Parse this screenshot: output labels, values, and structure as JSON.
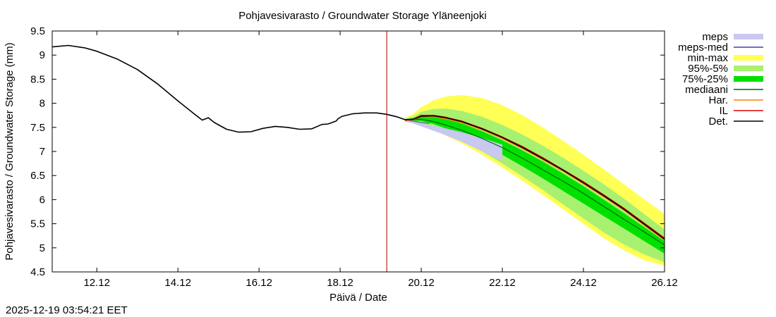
{
  "chart_data": {
    "type": "area",
    "title": "Pohjavesivarasto / Groundwater Storage   Yläneenjoki",
    "xlabel": "Päivä / Date",
    "ylabel": "Pohjavesivarasto / Groundwater Storage (mm)",
    "timestamp": "2025-12-19 03:54:21 EET",
    "xlim_days": [
      10.9,
      26.0
    ],
    "ylim": [
      4.5,
      9.5
    ],
    "yticks": [
      4.5,
      5,
      5.5,
      6,
      6.5,
      7,
      7.5,
      8,
      8.5,
      9,
      9.5
    ],
    "ytick_labels": [
      "4.5",
      "5",
      "5.5",
      "6",
      "6.5",
      "7",
      "7.5",
      "8",
      "8.5",
      "9",
      "9.5"
    ],
    "xticks": [
      {
        "day": 12,
        "label": "12.12"
      },
      {
        "day": 14,
        "label": "14.12"
      },
      {
        "day": 16,
        "label": "16.12"
      },
      {
        "day": 18,
        "label": "18.12"
      },
      {
        "day": 20,
        "label": "20.12"
      },
      {
        "day": 22,
        "label": "22.12"
      },
      {
        "day": 24,
        "label": "24.12"
      },
      {
        "day": 26,
        "label": "26.12"
      }
    ],
    "forecast_start_day": 19.15,
    "legend": [
      {
        "key": "meps",
        "label": "meps",
        "kind": "band",
        "color": "#c8c8f0"
      },
      {
        "key": "meps_med",
        "label": "meps-med",
        "kind": "line",
        "color": "#4040b0"
      },
      {
        "key": "minmax",
        "label": "min-max",
        "kind": "band",
        "color": "#ffff55"
      },
      {
        "key": "p95_5",
        "label": "95%-5%",
        "kind": "band",
        "color": "#a8f070"
      },
      {
        "key": "p75_25",
        "label": "75%-25%",
        "kind": "band",
        "color": "#00e000"
      },
      {
        "key": "median",
        "label": "mediaani",
        "kind": "line",
        "color": "#006400"
      },
      {
        "key": "har",
        "label": "Har.",
        "kind": "line",
        "color": "#ff8000"
      },
      {
        "key": "il",
        "label": "IL",
        "kind": "line",
        "color": "#e00000"
      },
      {
        "key": "det",
        "label": "Det.",
        "kind": "line",
        "color": "#000000"
      }
    ],
    "series": [
      {
        "name": "Det.",
        "x": [
          10.9,
          11.3,
          11.7,
          12.0,
          12.5,
          13.0,
          13.5,
          14.0,
          14.4,
          14.6,
          14.75,
          14.9,
          15.2,
          15.5,
          15.8,
          16.1,
          16.4,
          16.7,
          17.0,
          17.3,
          17.55,
          17.7,
          17.9,
          17.95,
          18.05,
          18.3,
          18.6,
          18.9,
          19.15,
          19.4,
          19.6,
          19.8,
          20.0,
          20.3,
          20.6,
          21.0,
          21.5,
          22.0,
          22.5,
          23.0,
          23.5,
          24.0,
          24.5,
          25.0,
          25.5,
          26.0
        ],
        "y": [
          9.17,
          9.2,
          9.15,
          9.08,
          8.92,
          8.7,
          8.4,
          8.05,
          7.78,
          7.65,
          7.7,
          7.6,
          7.46,
          7.4,
          7.41,
          7.48,
          7.52,
          7.5,
          7.46,
          7.47,
          7.56,
          7.57,
          7.63,
          7.68,
          7.73,
          7.78,
          7.8,
          7.8,
          7.77,
          7.72,
          7.66,
          7.67,
          7.73,
          7.74,
          7.7,
          7.62,
          7.47,
          7.29,
          7.08,
          6.85,
          6.61,
          6.35,
          6.08,
          5.8,
          5.49,
          5.18
        ]
      },
      {
        "name": "IL",
        "x": [
          19.6,
          19.8,
          20.0,
          20.3,
          20.6,
          21.0,
          21.5,
          22.0,
          22.5,
          23.0,
          23.5,
          24.0,
          24.5,
          25.0,
          25.5,
          26.0
        ],
        "y": [
          7.65,
          7.67,
          7.75,
          7.75,
          7.71,
          7.63,
          7.48,
          7.3,
          7.1,
          6.87,
          6.62,
          6.37,
          6.1,
          5.82,
          5.51,
          5.2
        ]
      },
      {
        "name": "Har.",
        "x": [
          19.6,
          19.8,
          20.0,
          20.3,
          20.6,
          21.0,
          21.5,
          22.0,
          22.5,
          23.0,
          23.5,
          24.0,
          24.5,
          25.0,
          25.5,
          26.0
        ],
        "y": [
          7.64,
          7.66,
          7.72,
          7.72,
          7.68,
          7.6,
          7.45,
          7.27,
          7.06,
          6.83,
          6.59,
          6.33,
          6.06,
          5.78,
          5.47,
          5.16
        ]
      },
      {
        "name": "mediaani",
        "x": [
          19.6,
          19.8,
          20.0,
          20.3,
          20.6,
          21.0,
          21.5,
          22.0,
          22.5,
          23.0,
          23.5,
          24.0,
          24.5,
          25.0,
          25.5,
          26.0
        ],
        "y": [
          7.65,
          7.66,
          7.67,
          7.62,
          7.55,
          7.44,
          7.27,
          7.08,
          6.86,
          6.62,
          6.38,
          6.13,
          5.86,
          5.59,
          5.33,
          5.06
        ]
      },
      {
        "name": "meps-med",
        "x": [
          19.6,
          19.8,
          20.0,
          20.2
        ],
        "y": [
          7.65,
          7.63,
          7.6,
          7.58
        ]
      }
    ],
    "bands": [
      {
        "name": "min-max",
        "x": [
          19.6,
          19.8,
          20.0,
          20.3,
          20.6,
          21.0,
          21.5,
          22.0,
          22.5,
          23.0,
          23.5,
          24.0,
          24.5,
          25.0,
          25.5,
          26.0
        ],
        "upper": [
          7.7,
          7.78,
          7.92,
          8.06,
          8.14,
          8.17,
          8.11,
          7.96,
          7.75,
          7.5,
          7.22,
          6.93,
          6.63,
          6.32,
          6.01,
          5.7
        ],
        "lower": [
          7.62,
          7.6,
          7.55,
          7.45,
          7.33,
          7.17,
          6.93,
          6.67,
          6.39,
          6.1,
          5.8,
          5.5,
          5.2,
          4.95,
          4.74,
          4.63
        ]
      },
      {
        "name": "95%-5%",
        "x": [
          19.6,
          19.8,
          20.0,
          20.3,
          20.6,
          21.0,
          21.5,
          22.0,
          22.5,
          23.0,
          23.5,
          24.0,
          24.5,
          25.0,
          25.5,
          26.0
        ],
        "upper": [
          7.68,
          7.73,
          7.82,
          7.88,
          7.89,
          7.84,
          7.72,
          7.55,
          7.35,
          7.12,
          6.87,
          6.6,
          6.32,
          6.02,
          5.7,
          5.38
        ],
        "lower": [
          7.63,
          7.62,
          7.58,
          7.5,
          7.39,
          7.23,
          7.0,
          6.75,
          6.48,
          6.2,
          5.9,
          5.61,
          5.32,
          5.07,
          4.86,
          4.7
        ]
      },
      {
        "name": "75%-25%",
        "x": [
          19.6,
          19.8,
          20.0,
          20.3,
          20.6,
          21.0,
          21.5,
          22.0,
          22.5,
          23.0,
          23.5,
          24.0,
          24.5,
          25.0,
          25.5,
          26.0
        ],
        "upper": [
          7.66,
          7.69,
          7.73,
          7.72,
          7.67,
          7.58,
          7.42,
          7.23,
          7.02,
          6.79,
          6.54,
          6.28,
          6.0,
          5.72,
          5.43,
          5.14
        ],
        "lower": [
          7.64,
          7.64,
          7.63,
          7.57,
          7.48,
          7.35,
          7.15,
          6.93,
          6.69,
          6.44,
          6.18,
          5.92,
          5.66,
          5.4,
          5.14,
          4.88
        ]
      },
      {
        "name": "meps",
        "x": [
          19.6,
          19.8,
          20.0,
          20.2,
          20.5,
          21.0,
          21.5,
          22.0
        ],
        "upper": [
          7.64,
          7.62,
          7.58,
          7.55,
          7.5,
          7.4,
          7.28,
          7.14
        ],
        "lower": [
          7.62,
          7.58,
          7.52,
          7.46,
          7.37,
          7.2,
          7.0,
          6.8
        ]
      }
    ]
  }
}
